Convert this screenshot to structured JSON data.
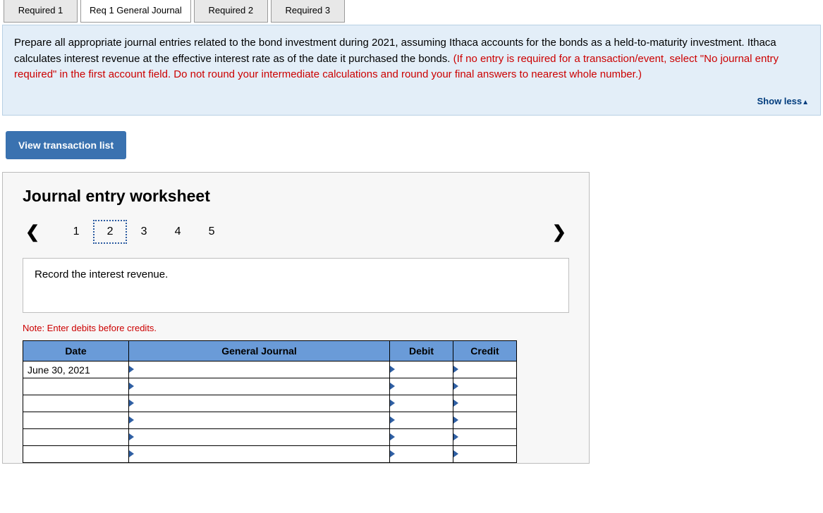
{
  "tabs": {
    "items": [
      {
        "label": "Required 1",
        "active": false
      },
      {
        "label": "Req 1 General Journal",
        "active": true
      },
      {
        "label": "Required 2",
        "active": false
      },
      {
        "label": "Required 3",
        "active": false
      }
    ]
  },
  "instructions": {
    "text_black": "Prepare all appropriate journal entries related to the bond investment during 2021, assuming Ithaca accounts for the bonds as a held-to-maturity investment. Ithaca calculates interest revenue at the effective interest rate as of the date it purchased the bonds. ",
    "text_red": "(If no entry is required for a transaction/event, select \"No journal entry required\" in the first account field. Do not round your intermediate calculations and round your final answers to nearest whole number.)",
    "showless_label": "Show less"
  },
  "view_button": {
    "label": "View transaction list"
  },
  "worksheet": {
    "title": "Journal entry worksheet",
    "pager": {
      "items": [
        "1",
        "2",
        "3",
        "4",
        "5"
      ],
      "current_index": 1
    },
    "description": "Record the interest revenue.",
    "note": "Note: Enter debits before credits.",
    "table": {
      "columns": [
        "Date",
        "General Journal",
        "Debit",
        "Credit"
      ],
      "rows": [
        {
          "date": "June 30, 2021",
          "gj": "",
          "debit": "",
          "credit": ""
        },
        {
          "date": "",
          "gj": "",
          "debit": "",
          "credit": ""
        },
        {
          "date": "",
          "gj": "",
          "debit": "",
          "credit": ""
        },
        {
          "date": "",
          "gj": "",
          "debit": "",
          "credit": ""
        },
        {
          "date": "",
          "gj": "",
          "debit": "",
          "credit": ""
        },
        {
          "date": "",
          "gj": "",
          "debit": "",
          "credit": ""
        }
      ]
    }
  },
  "colors": {
    "instruction_bg": "#e3eef8",
    "instruction_red": "#c00",
    "button_bg": "#3a72b0",
    "table_header_bg": "#6a9bd8",
    "pager_dotted": "#2a5aa0"
  }
}
